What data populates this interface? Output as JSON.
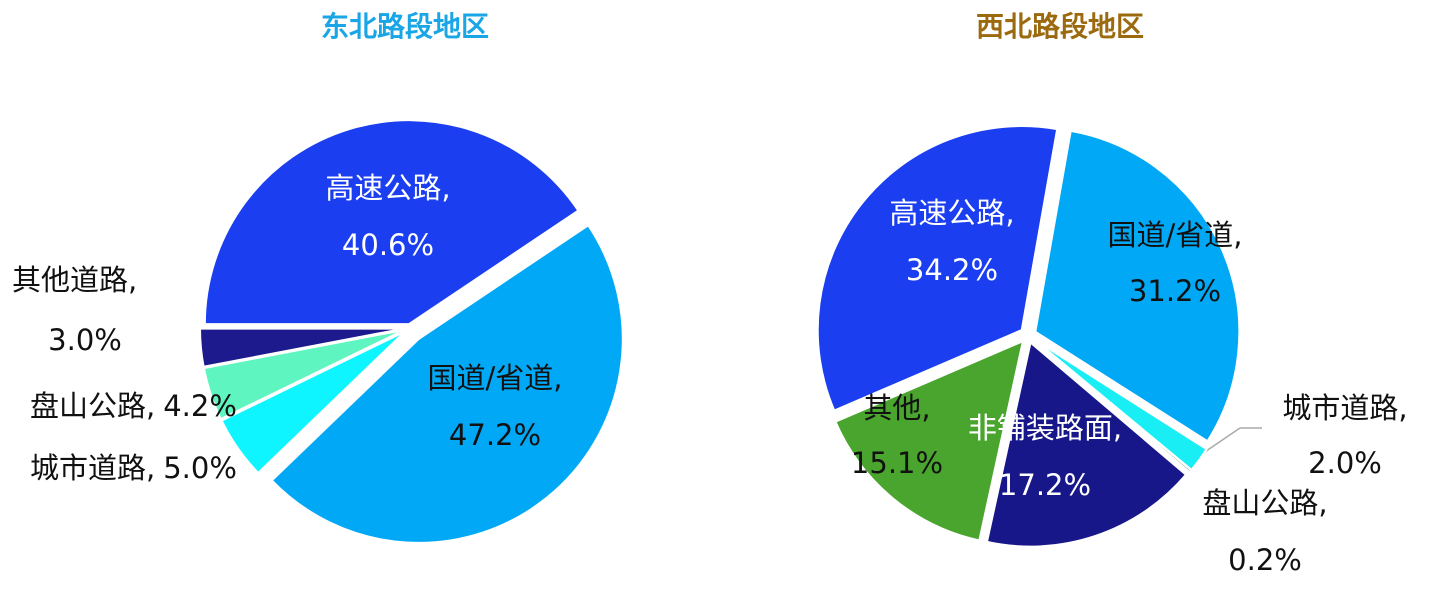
{
  "chart_data": [
    {
      "type": "pie",
      "title": "东北路段地区",
      "title_color": "#1aa6e6",
      "categories": [
        "高速公路,",
        "国道/省道,",
        "城市道路,",
        "盘山公路,",
        "其他道路,"
      ],
      "values": [
        40.6,
        47.2,
        5.0,
        4.2,
        3.0
      ],
      "value_labels": [
        "40.6%",
        "47.2%",
        "5.0%",
        "4.2%",
        "3.0%"
      ],
      "colors": [
        "#1a3ef0",
        "#00a8f5",
        "#0ff5ff",
        "#5ef5c0",
        "#1c1a8c"
      ]
    },
    {
      "type": "pie",
      "title": "西北路段地区",
      "title_color": "#9b6a0e",
      "categories": [
        "国道/省道,",
        "城市道路,",
        "盘山公路,",
        "非铺装路面,",
        "其他,",
        "高速公路,"
      ],
      "values": [
        31.2,
        2.0,
        0.2,
        17.2,
        15.1,
        34.2
      ],
      "value_labels": [
        "31.2%",
        "2.0%",
        "0.2%",
        "17.2%",
        "15.1%",
        "34.2%"
      ],
      "colors": [
        "#00a8f5",
        "#1aeef5",
        "#aaaaaa",
        "#17178a",
        "#4aa52e",
        "#1a3ef0"
      ]
    }
  ]
}
